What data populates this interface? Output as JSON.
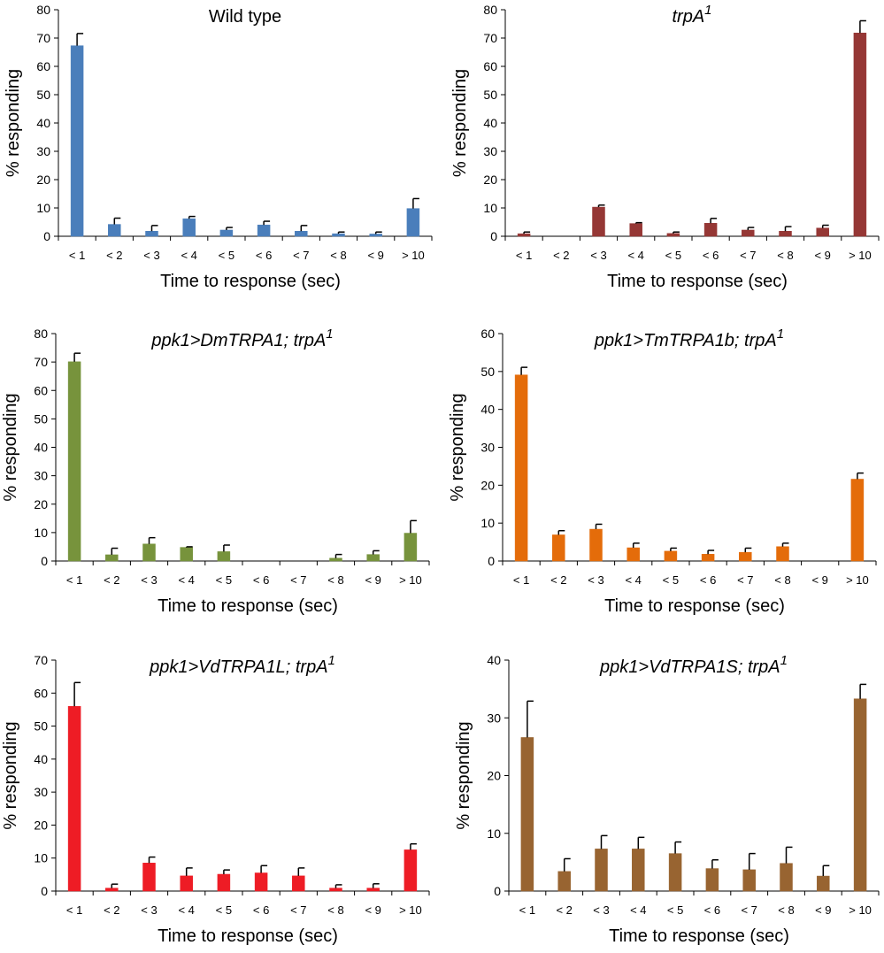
{
  "chart_data": [
    {
      "type": "bar",
      "title": "Wild type",
      "title_superscript": "",
      "italic_title": false,
      "xlabel": "Time to response (sec)",
      "ylabel": "% responding",
      "ylim": [
        0,
        80
      ],
      "yticks": [
        0,
        10,
        20,
        30,
        40,
        50,
        60,
        70,
        80
      ],
      "categories": [
        "< 1",
        "< 2",
        "< 3",
        "< 4",
        "< 5",
        "< 6",
        "< 7",
        "< 8",
        "< 9",
        "> 10"
      ],
      "values": [
        67.3,
        4.2,
        1.8,
        6.2,
        2.2,
        4.0,
        1.8,
        0.9,
        0.8,
        9.8
      ],
      "errors": [
        4.3,
        2.2,
        2.0,
        0.8,
        0.9,
        1.3,
        2.0,
        0.6,
        0.7,
        3.5
      ],
      "color": "#4a7ebb"
    },
    {
      "type": "bar",
      "title": "trpA",
      "title_superscript": "1",
      "italic_title": true,
      "xlabel": "Time to response (sec)",
      "ylabel": "% responding",
      "ylim": [
        0,
        80
      ],
      "yticks": [
        0,
        10,
        20,
        30,
        40,
        50,
        60,
        70,
        80
      ],
      "categories": [
        "< 1",
        "< 2",
        "< 3",
        "< 4",
        "< 5",
        "< 6",
        "< 7",
        "< 8",
        "< 9",
        "> 10"
      ],
      "values": [
        0.9,
        0,
        10.3,
        4.5,
        1.0,
        4.6,
        2.2,
        1.8,
        2.9,
        71.8
      ],
      "errors": [
        0.6,
        0,
        0.7,
        0.3,
        0.5,
        1.7,
        0.9,
        1.6,
        1.0,
        4.3
      ],
      "color": "#953735"
    },
    {
      "type": "bar",
      "title": "ppk1>DmTRPA1; trpA",
      "title_superscript": "1",
      "italic_title": true,
      "xlabel": "Time to response (sec)",
      "ylabel": "% responding",
      "ylim": [
        0,
        80
      ],
      "yticks": [
        0,
        10,
        20,
        30,
        40,
        50,
        60,
        70,
        80
      ],
      "categories": [
        "< 1",
        "< 2",
        "< 3",
        "< 4",
        "< 5",
        "< 6",
        "< 7",
        "< 8",
        "< 9",
        "> 10"
      ],
      "values": [
        70.1,
        2.2,
        6.0,
        4.8,
        3.3,
        0,
        0,
        1.0,
        2.3,
        9.8
      ],
      "errors": [
        3.0,
        2.3,
        2.2,
        0.2,
        2.3,
        0,
        0,
        1.3,
        1.3,
        4.4
      ],
      "color": "#77933c"
    },
    {
      "type": "bar",
      "title": "ppk1>TmTRPA1b; trpA",
      "title_superscript": "1",
      "italic_title": true,
      "xlabel": "Time to response (sec)",
      "ylabel": "% responding",
      "ylim": [
        0,
        60
      ],
      "yticks": [
        0,
        10,
        20,
        30,
        40,
        50,
        60
      ],
      "categories": [
        "< 1",
        "< 2",
        "< 3",
        "< 4",
        "< 5",
        "< 6",
        "< 7",
        "< 8",
        "< 9",
        "> 10"
      ],
      "values": [
        49.1,
        6.9,
        8.4,
        3.5,
        2.6,
        1.8,
        2.3,
        3.8,
        0,
        21.6
      ],
      "errors": [
        2.0,
        1.1,
        1.3,
        1.2,
        0.8,
        1.0,
        1.1,
        0.9,
        0,
        1.6
      ],
      "color": "#e46c0a"
    },
    {
      "type": "bar",
      "title": "ppk1>VdTRPA1L; trpA",
      "title_superscript": "1",
      "italic_title": true,
      "xlabel": "Time to response (sec)",
      "ylabel": "% responding",
      "ylim": [
        0,
        70
      ],
      "yticks": [
        0,
        10,
        20,
        30,
        40,
        50,
        60,
        70
      ],
      "categories": [
        "< 1",
        "< 2",
        "< 3",
        "< 4",
        "< 5",
        "< 6",
        "< 7",
        "< 8",
        "< 9",
        "> 10"
      ],
      "values": [
        56.0,
        0.9,
        8.5,
        4.6,
        5.1,
        5.5,
        4.6,
        0.9,
        0.9,
        12.5
      ],
      "errors": [
        7.2,
        1.2,
        1.8,
        2.4,
        1.3,
        2.2,
        2.4,
        1.0,
        1.3,
        1.8
      ],
      "color": "#ee1c25"
    },
    {
      "type": "bar",
      "title": "ppk1>VdTRPA1S; trpA",
      "title_superscript": "1",
      "italic_title": true,
      "xlabel": "Time to response (sec)",
      "ylabel": "% responding",
      "ylim": [
        0,
        40
      ],
      "yticks": [
        0,
        10,
        20,
        30,
        40
      ],
      "categories": [
        "< 1",
        "< 2",
        "< 3",
        "< 4",
        "< 5",
        "< 6",
        "< 7",
        "< 8",
        "< 9",
        "> 10"
      ],
      "values": [
        26.6,
        3.4,
        7.3,
        7.3,
        6.5,
        3.9,
        3.7,
        4.8,
        2.6,
        33.3
      ],
      "errors": [
        6.3,
        2.2,
        2.3,
        2.0,
        2.0,
        1.5,
        2.8,
        2.8,
        1.8,
        2.5
      ],
      "color": "#986431"
    }
  ]
}
